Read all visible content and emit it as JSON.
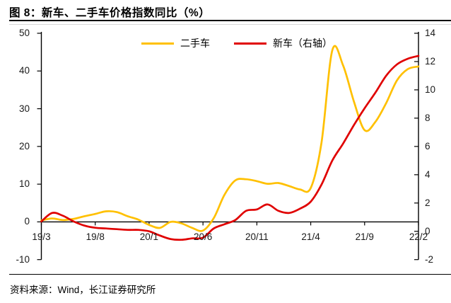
{
  "header": {
    "title": "图 8：新车、二手车价格指数同比（%）"
  },
  "footer": {
    "source": "资料来源：Wind，长江证券研究所"
  },
  "colors": {
    "used_car_line": "#FFC000",
    "new_car_line": "#E00000",
    "axis": "#000000"
  },
  "chart_data": {
    "type": "line",
    "title": "图 8：新车、二手车价格指数同比（%）",
    "x": [
      "19/3",
      "19/4",
      "19/5",
      "19/6",
      "19/7",
      "19/8",
      "19/9",
      "19/10",
      "19/11",
      "19/12",
      "20/1",
      "20/2",
      "20/3",
      "20/4",
      "20/5",
      "20/6",
      "20/7",
      "20/8",
      "20/9",
      "20/10",
      "20/11",
      "20/12",
      "21/1",
      "21/2",
      "21/3",
      "21/4",
      "21/5",
      "21/6",
      "21/7",
      "21/8",
      "21/9",
      "21/10",
      "21/11",
      "21/12",
      "22/1",
      "22/2"
    ],
    "x_axis_tick_labels": [
      "19/3",
      "19/8",
      "20/1",
      "20/6",
      "20/11",
      "21/4",
      "21/9",
      "22/2"
    ],
    "series": [
      {
        "name": "二手车",
        "axis": "left",
        "color": "#FFC000",
        "values": [
          0.4,
          0.9,
          0.5,
          0.8,
          1.5,
          2.1,
          2.8,
          2.6,
          1.5,
          0.6,
          -0.8,
          -1.6,
          0.0,
          -0.4,
          -1.6,
          -2.3,
          1.0,
          7.2,
          11.0,
          11.3,
          10.8,
          10.1,
          10.3,
          9.5,
          8.6,
          9.0,
          21.0,
          45.5,
          41.5,
          32.0,
          24.3,
          26.5,
          31.5,
          37.5,
          40.5,
          41.2
        ]
      },
      {
        "name": "新车（右轴）",
        "axis": "right",
        "color": "#E00000",
        "values": [
          0.7,
          1.3,
          1.1,
          0.7,
          0.4,
          0.25,
          0.2,
          0.15,
          0.1,
          0.1,
          0.0,
          -0.3,
          -0.55,
          -0.6,
          -0.5,
          -0.45,
          0.2,
          0.5,
          0.8,
          1.45,
          1.55,
          1.9,
          1.45,
          1.3,
          1.6,
          2.1,
          3.3,
          5.0,
          6.2,
          7.5,
          8.7,
          9.8,
          11.0,
          11.8,
          12.2,
          12.4
        ]
      }
    ],
    "left_axis": {
      "min": -10,
      "max": 50,
      "step": 10,
      "ticks": [
        50,
        40,
        30,
        20,
        10,
        0,
        -10
      ]
    },
    "right_axis": {
      "min": -2,
      "max": 14,
      "step": 2,
      "ticks": [
        14,
        12,
        10,
        8,
        6,
        4,
        2,
        0,
        -2
      ]
    },
    "grid": false,
    "legend_position": "top-center"
  }
}
